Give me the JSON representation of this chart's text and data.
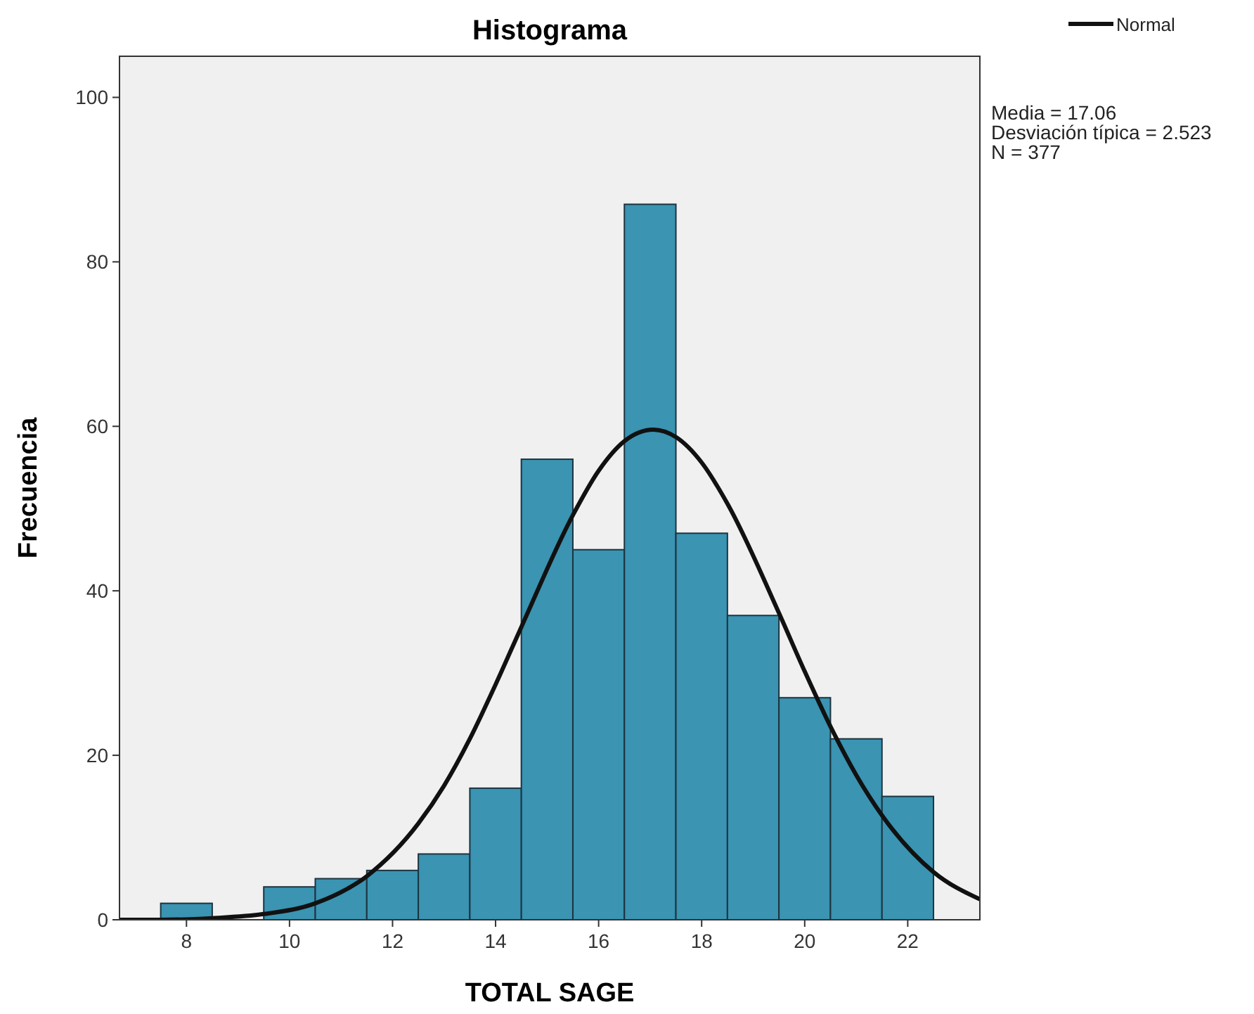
{
  "chart_data": {
    "type": "histogram",
    "title": "Histograma",
    "xlabel": "TOTAL SAGE",
    "ylabel": "Frecuencia",
    "bins": [
      7.5,
      8.5,
      9.5,
      10.5,
      11.5,
      12.5,
      13.5,
      14.5,
      15.5,
      16.5,
      17.5,
      18.5,
      19.5,
      20.5,
      21.5,
      22.5
    ],
    "values": [
      2,
      0,
      4,
      5,
      6,
      8,
      16,
      56,
      45,
      87,
      47,
      37,
      27,
      22,
      15
    ],
    "color": "#3a94b2",
    "series": [
      {
        "name": "Normal",
        "type": "line",
        "color": "#111111",
        "x": [
          6.7,
          7.5,
          8.5,
          9.5,
          10.5,
          11.5,
          12.5,
          13,
          13.5,
          14,
          14.5,
          15.5,
          16,
          16.5,
          17.06,
          17.5,
          18,
          18.5,
          19.5,
          20,
          20.5,
          21,
          21.5,
          22.5,
          23.4
        ],
        "values": [
          0,
          0,
          0.2,
          0.7,
          2.0,
          5.3,
          11.7,
          16.3,
          22.0,
          28.6,
          35.6,
          49.2,
          54.6,
          58.2,
          59.6,
          58.7,
          55.6,
          50.6,
          37.3,
          30.2,
          23.5,
          17.6,
          12.7,
          5.8,
          2.5
        ]
      }
    ],
    "xlim": [
      6.7,
      23.4
    ],
    "ylim": [
      0,
      105
    ],
    "xticks": [
      8,
      10,
      12,
      14,
      16,
      18,
      20,
      22
    ],
    "yticks": [
      0,
      20,
      40,
      60,
      80,
      100
    ],
    "legend": "top right",
    "grid": false,
    "annotations": [
      "Media = 17.06",
      "Desviación típica = 2.523",
      "N = 377"
    ]
  }
}
